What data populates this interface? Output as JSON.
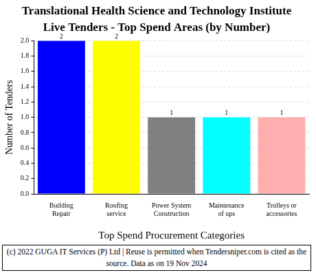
{
  "chart_data": {
    "type": "bar",
    "title": [
      "Translational Health Science and Technology Institute",
      "Live Tenders - Top Spend Areas (by Number)"
    ],
    "x_label": "Top Spend Procurement Categories",
    "y_label": "Number of Tenders",
    "categories": [
      "Building Repair",
      "Roofing service",
      "Power System Construction",
      "Maintenance of ups",
      "Trolleys or accessories"
    ],
    "values": [
      2,
      2,
      1,
      1,
      1
    ],
    "colors": [
      "#0000ff",
      "#ffff00",
      "#808080",
      "#00ffff",
      "#ffafaf"
    ],
    "ylim": [
      0,
      2
    ],
    "yticks": [
      {
        "value": 0,
        "label": "0.0"
      },
      {
        "value": 0.2,
        "label": "0.2"
      },
      {
        "value": 0.4,
        "label": "0.4"
      },
      {
        "value": 0.6,
        "label": "0.6"
      },
      {
        "value": 0.8,
        "label": "0.8"
      },
      {
        "value": 1,
        "label": "1.0"
      },
      {
        "value": 1.2,
        "label": "1.2"
      },
      {
        "value": 1.4,
        "label": "1.4"
      },
      {
        "value": 1.6,
        "label": "1.6"
      },
      {
        "value": 1.8,
        "label": "1.8"
      },
      {
        "value": 2,
        "label": "2.0"
      }
    ],
    "grid": true,
    "data_labels": true,
    "footer": "(c) 2022 GUGA IT Services (P) Ltd | Reuse is permitted when Tendersniper.com is cited as the source. Data as on 19 Nov 2024"
  }
}
